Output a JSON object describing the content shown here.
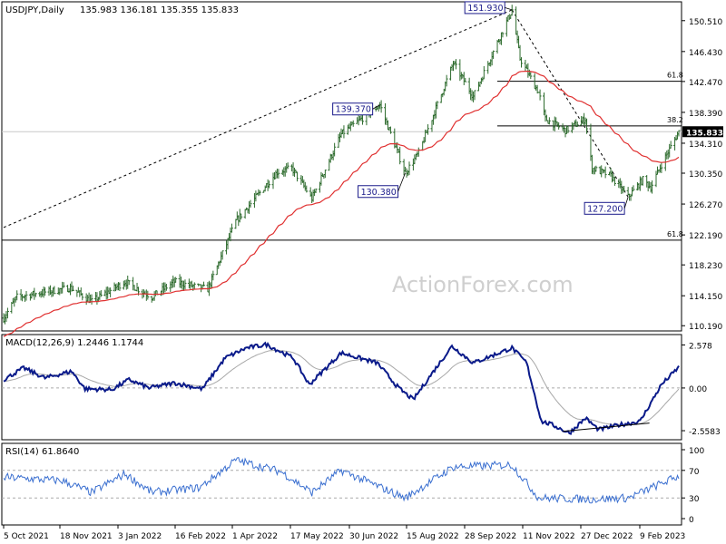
{
  "header": {
    "symbol": "USDJPY,Daily",
    "ohlc": "135.983 136.181 135.355 135.833"
  },
  "watermark": "ActionForex.com",
  "colors": {
    "price_bars": "#2d6b2d",
    "sma": "#e03030",
    "macd": "#0a1a8a",
    "macd_signal": "#a8a8a8",
    "rsi": "#3a6fd0",
    "label_border": "#1a1a8a",
    "last_price_bg": "#000000"
  },
  "chart_data": [
    {
      "type": "ohlc",
      "panel": "price",
      "x_tick_labels": [
        "5 Oct 2021",
        "18 Nov 2021",
        "3 Jan 2022",
        "16 Feb 2022",
        "1 Apr 2022",
        "17 May 2022",
        "30 Jun 2022",
        "15 Aug 2022",
        "28 Sep 2022",
        "11 Nov 2022",
        "27 Dec 2022",
        "9 Feb 2023"
      ],
      "y_ticks": [
        "150.510",
        "146.430",
        "142.470",
        "138.390",
        "134.310",
        "130.350",
        "126.270",
        "122.190",
        "118.230",
        "114.150",
        "110.190"
      ],
      "ylim": [
        109.5,
        153.0
      ],
      "last_price": "135.833",
      "moving_average": "red trend line",
      "annotations": [
        {
          "label": "151.930",
          "value": 151.93,
          "date": "2022-10-21"
        },
        {
          "label": "139.370",
          "value": 139.37,
          "date": "2022-07-14"
        },
        {
          "label": "130.380",
          "value": 130.38,
          "date": "2022-08-02"
        },
        {
          "label": "127.200",
          "value": 127.2,
          "date": "2023-01-16"
        }
      ],
      "levels": [
        {
          "label": "61.8",
          "value": 142.5
        },
        {
          "label": "38.2",
          "value": 136.6
        },
        {
          "label": "61.8",
          "value": 121.5
        }
      ],
      "anchor_prices": [
        {
          "date": "2021-10-05",
          "value": 111.2
        },
        {
          "date": "2021-10-15",
          "value": 114.0
        },
        {
          "date": "2021-11-24",
          "value": 115.2
        },
        {
          "date": "2021-12-10",
          "value": 113.4
        },
        {
          "date": "2022-01-04",
          "value": 116.0
        },
        {
          "date": "2022-01-24",
          "value": 114.0
        },
        {
          "date": "2022-02-10",
          "value": 116.0
        },
        {
          "date": "2022-03-07",
          "value": 115.0
        },
        {
          "date": "2022-03-28",
          "value": 124.0
        },
        {
          "date": "2022-04-28",
          "value": 130.5
        },
        {
          "date": "2022-05-09",
          "value": 131.0
        },
        {
          "date": "2022-05-24",
          "value": 127.0
        },
        {
          "date": "2022-06-15",
          "value": 135.5
        },
        {
          "date": "2022-07-14",
          "value": 139.37
        },
        {
          "date": "2022-08-02",
          "value": 130.38
        },
        {
          "date": "2022-08-12",
          "value": 133.0
        },
        {
          "date": "2022-09-07",
          "value": 144.9
        },
        {
          "date": "2022-09-22",
          "value": 140.5
        },
        {
          "date": "2022-10-21",
          "value": 151.93
        },
        {
          "date": "2022-10-27",
          "value": 145.5
        },
        {
          "date": "2022-11-10",
          "value": 141.0
        },
        {
          "date": "2022-11-15",
          "value": 137.5
        },
        {
          "date": "2022-11-30",
          "value": 136.0
        },
        {
          "date": "2022-12-15",
          "value": 137.5
        },
        {
          "date": "2022-12-20",
          "value": 131.0
        },
        {
          "date": "2023-01-03",
          "value": 130.0
        },
        {
          "date": "2023-01-16",
          "value": 127.2
        },
        {
          "date": "2023-01-27",
          "value": 129.5
        },
        {
          "date": "2023-02-02",
          "value": 128.5
        },
        {
          "date": "2023-02-10",
          "value": 131.5
        },
        {
          "date": "2023-02-23",
          "value": 135.833
        }
      ]
    },
    {
      "type": "line",
      "panel": "macd",
      "title": "MACD(12,26,9) 1.2446 1.1744",
      "y_ticks": [
        "2.578",
        "0.00",
        "-2.5583"
      ],
      "ylim": [
        -3.1,
        3.2
      ],
      "anchors": [
        {
          "date": "2021-10-05",
          "value": 0.5
        },
        {
          "date": "2021-10-20",
          "value": 1.2
        },
        {
          "date": "2021-11-05",
          "value": 0.6
        },
        {
          "date": "2021-11-25",
          "value": 1.0
        },
        {
          "date": "2021-12-05",
          "value": -0.05
        },
        {
          "date": "2021-12-25",
          "value": -0.1
        },
        {
          "date": "2022-01-07",
          "value": 0.5
        },
        {
          "date": "2022-01-22",
          "value": 0.0
        },
        {
          "date": "2022-02-10",
          "value": 0.3
        },
        {
          "date": "2022-03-03",
          "value": -0.05
        },
        {
          "date": "2022-03-20",
          "value": 1.8
        },
        {
          "date": "2022-04-05",
          "value": 2.4
        },
        {
          "date": "2022-04-20",
          "value": 2.6
        },
        {
          "date": "2022-05-10",
          "value": 1.8
        },
        {
          "date": "2022-05-22",
          "value": 0.2
        },
        {
          "date": "2022-06-15",
          "value": 2.1
        },
        {
          "date": "2022-07-12",
          "value": 1.5
        },
        {
          "date": "2022-07-28",
          "value": 0.0
        },
        {
          "date": "2022-08-08",
          "value": -0.7
        },
        {
          "date": "2022-08-25",
          "value": 1.2
        },
        {
          "date": "2022-09-06",
          "value": 2.5
        },
        {
          "date": "2022-09-22",
          "value": 1.5
        },
        {
          "date": "2022-10-21",
          "value": 2.4
        },
        {
          "date": "2022-11-01",
          "value": 1.5
        },
        {
          "date": "2022-11-12",
          "value": -2.0
        },
        {
          "date": "2022-11-20",
          "value": -2.2
        },
        {
          "date": "2022-12-03",
          "value": -2.7
        },
        {
          "date": "2022-12-15",
          "value": -1.8
        },
        {
          "date": "2022-12-25",
          "value": -2.5
        },
        {
          "date": "2023-01-10",
          "value": -2.2
        },
        {
          "date": "2023-01-25",
          "value": -2.0
        },
        {
          "date": "2023-02-10",
          "value": 0.2
        },
        {
          "date": "2023-02-23",
          "value": 1.2446
        }
      ],
      "signal_last": 1.1744
    },
    {
      "type": "line",
      "panel": "rsi",
      "title": "RSI(14) 61.8640",
      "y_ticks": [
        "100",
        "70",
        "30",
        "0"
      ],
      "ylim": [
        0,
        100
      ],
      "anchors": [
        {
          "date": "2021-10-05",
          "value": 60
        },
        {
          "date": "2021-11-18",
          "value": 55
        },
        {
          "date": "2021-12-10",
          "value": 38
        },
        {
          "date": "2022-01-04",
          "value": 65
        },
        {
          "date": "2022-01-24",
          "value": 38
        },
        {
          "date": "2022-03-01",
          "value": 45
        },
        {
          "date": "2022-03-28",
          "value": 85
        },
        {
          "date": "2022-05-01",
          "value": 68
        },
        {
          "date": "2022-05-24",
          "value": 38
        },
        {
          "date": "2022-06-15",
          "value": 70
        },
        {
          "date": "2022-08-02",
          "value": 30
        },
        {
          "date": "2022-09-07",
          "value": 75
        },
        {
          "date": "2022-10-21",
          "value": 78
        },
        {
          "date": "2022-11-10",
          "value": 30
        },
        {
          "date": "2022-12-20",
          "value": 28
        },
        {
          "date": "2023-01-16",
          "value": 30
        },
        {
          "date": "2023-02-23",
          "value": 61.864
        }
      ]
    }
  ]
}
